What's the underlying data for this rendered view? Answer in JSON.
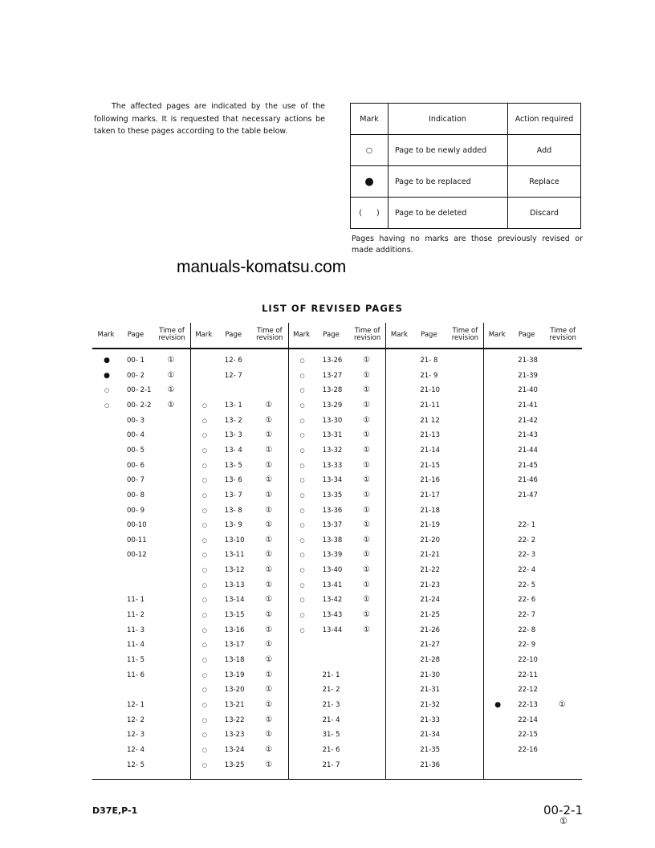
{
  "intro_text": "The affected pages are indicated by the use of the following marks. It is requested that necessary actions be taken to these pages according to the table below.",
  "legend": {
    "headers": [
      "Mark",
      "Indication",
      "Action required"
    ],
    "rows": [
      {
        "mark": "○",
        "indication": "Page to be newly added",
        "action": "Add"
      },
      {
        "mark": "●",
        "indication": "Page to be replaced",
        "action": "Replace"
      },
      {
        "mark": "(      )",
        "indication": "Page to be deleted",
        "action": "Discard"
      }
    ]
  },
  "note": "Pages having no marks are those previously revised or made additions.",
  "watermark": "manuals-komatsu.com",
  "title": "LIST OF REVISED PAGES",
  "revised_table": {
    "headers": {
      "mark": "Mark",
      "page": "Page",
      "time": "Time of revision"
    },
    "mark_symbols": {
      "open": "○",
      "filled": "●"
    },
    "revision_symbol": "①",
    "columns": [
      [
        [
          "filled",
          "00- 1",
          "1"
        ],
        [
          "filled",
          "00- 2",
          "1"
        ],
        [
          "open",
          "00- 2-1",
          "1"
        ],
        [
          "open",
          "00- 2-2",
          "1"
        ],
        [
          "",
          "00- 3",
          ""
        ],
        [
          "",
          "00- 4",
          ""
        ],
        [
          "",
          "00- 5",
          ""
        ],
        [
          "",
          "00- 6",
          ""
        ],
        [
          "",
          "00- 7",
          ""
        ],
        [
          "",
          "00- 8",
          ""
        ],
        [
          "",
          "00- 9",
          ""
        ],
        [
          "",
          "00-10",
          ""
        ],
        [
          "",
          "00-11",
          ""
        ],
        [
          "",
          "00-12",
          ""
        ],
        [
          "",
          "",
          ""
        ],
        [
          "",
          "",
          ""
        ],
        [
          "",
          "11- 1",
          ""
        ],
        [
          "",
          "11- 2",
          ""
        ],
        [
          "",
          "11- 3",
          ""
        ],
        [
          "",
          "11- 4",
          ""
        ],
        [
          "",
          "11- 5",
          ""
        ],
        [
          "",
          "11- 6",
          ""
        ],
        [
          "",
          "",
          ""
        ],
        [
          "",
          "12- 1",
          ""
        ],
        [
          "",
          "12- 2",
          ""
        ],
        [
          "",
          "12- 3",
          ""
        ],
        [
          "",
          "12- 4",
          ""
        ],
        [
          "",
          "12- 5",
          ""
        ]
      ],
      [
        [
          "",
          "12- 6",
          ""
        ],
        [
          "",
          "12- 7",
          ""
        ],
        [
          "",
          "",
          ""
        ],
        [
          "open",
          "13- 1",
          "1"
        ],
        [
          "open",
          "13- 2",
          "1"
        ],
        [
          "open",
          "13- 3",
          "1"
        ],
        [
          "open",
          "13- 4",
          "1"
        ],
        [
          "open",
          "13- 5",
          "1"
        ],
        [
          "open",
          "13- 6",
          "1"
        ],
        [
          "open",
          "13- 7",
          "1"
        ],
        [
          "open",
          "13- 8",
          "1"
        ],
        [
          "open",
          "13- 9",
          "1"
        ],
        [
          "open",
          "13-10",
          "1"
        ],
        [
          "open",
          "13-11",
          "1"
        ],
        [
          "open",
          "13-12",
          "1"
        ],
        [
          "open",
          "13-13",
          "1"
        ],
        [
          "open",
          "13-14",
          "1"
        ],
        [
          "open",
          "13-15",
          "1"
        ],
        [
          "open",
          "13-16",
          "1"
        ],
        [
          "open",
          "13-17",
          "1"
        ],
        [
          "open",
          "13-18",
          "1"
        ],
        [
          "open",
          "13-19",
          "1"
        ],
        [
          "open",
          "13-20",
          "1"
        ],
        [
          "open",
          "13-21",
          "1"
        ],
        [
          "open",
          "13-22",
          "1"
        ],
        [
          "open",
          "13-23",
          "1"
        ],
        [
          "open",
          "13-24",
          "1"
        ],
        [
          "open",
          "13-25",
          "1"
        ]
      ],
      [
        [
          "open",
          "13-26",
          "1"
        ],
        [
          "open",
          "13-27",
          "1"
        ],
        [
          "open",
          "13-28",
          "1"
        ],
        [
          "open",
          "13-29",
          "1"
        ],
        [
          "open",
          "13-30",
          "1"
        ],
        [
          "open",
          "13-31",
          "1"
        ],
        [
          "open",
          "13-32",
          "1"
        ],
        [
          "open",
          "13-33",
          "1"
        ],
        [
          "open",
          "13-34",
          "1"
        ],
        [
          "open",
          "13-35",
          "1"
        ],
        [
          "open",
          "13-36",
          "1"
        ],
        [
          "open",
          "13-37",
          "1"
        ],
        [
          "open",
          "13-38",
          "1"
        ],
        [
          "open",
          "13-39",
          "1"
        ],
        [
          "open",
          "13-40",
          "1"
        ],
        [
          "open",
          "13-41",
          "1"
        ],
        [
          "open",
          "13-42",
          "1"
        ],
        [
          "open",
          "13-43",
          "1"
        ],
        [
          "open",
          "13-44",
          "1"
        ],
        [
          "",
          "",
          ""
        ],
        [
          "",
          "",
          ""
        ],
        [
          "",
          "21- 1",
          ""
        ],
        [
          "",
          "21- 2",
          ""
        ],
        [
          "",
          "21- 3",
          ""
        ],
        [
          "",
          "21- 4",
          ""
        ],
        [
          "",
          "31- 5",
          ""
        ],
        [
          "",
          "21- 6",
          ""
        ],
        [
          "",
          "21- 7",
          ""
        ]
      ],
      [
        [
          "",
          "21- 8",
          ""
        ],
        [
          "",
          "21- 9",
          ""
        ],
        [
          "",
          "21-10",
          ""
        ],
        [
          "",
          "21-11",
          ""
        ],
        [
          "",
          "21 12",
          ""
        ],
        [
          "",
          "21-13",
          ""
        ],
        [
          "",
          "21-14",
          ""
        ],
        [
          "",
          "21-15",
          ""
        ],
        [
          "",
          "21-16",
          ""
        ],
        [
          "",
          "21-17",
          ""
        ],
        [
          "",
          "21-18",
          ""
        ],
        [
          "",
          "21-19",
          ""
        ],
        [
          "",
          "21-20",
          ""
        ],
        [
          "",
          "21-21",
          ""
        ],
        [
          "",
          "21-22",
          ""
        ],
        [
          "",
          "21-23",
          ""
        ],
        [
          "",
          "21-24",
          ""
        ],
        [
          "",
          "21-25",
          ""
        ],
        [
          "",
          "21-26",
          ""
        ],
        [
          "",
          "21-27",
          ""
        ],
        [
          "",
          "21-28",
          ""
        ],
        [
          "",
          "21-30",
          ""
        ],
        [
          "",
          "21-31",
          ""
        ],
        [
          "",
          "21-32",
          ""
        ],
        [
          "",
          "21-33",
          ""
        ],
        [
          "",
          "21-34",
          ""
        ],
        [
          "",
          "21-35",
          ""
        ],
        [
          "",
          "21-36",
          ""
        ]
      ],
      [
        [
          "",
          "21-38",
          ""
        ],
        [
          "",
          "21-39",
          ""
        ],
        [
          "",
          "21-40",
          ""
        ],
        [
          "",
          "21-41",
          ""
        ],
        [
          "",
          "21-42",
          ""
        ],
        [
          "",
          "21-43",
          ""
        ],
        [
          "",
          "21-44",
          ""
        ],
        [
          "",
          "21-45",
          ""
        ],
        [
          "",
          "21-46",
          ""
        ],
        [
          "",
          "21-47",
          ""
        ],
        [
          "",
          "",
          ""
        ],
        [
          "",
          "22- 1",
          ""
        ],
        [
          "",
          "22- 2",
          ""
        ],
        [
          "",
          "22- 3",
          ""
        ],
        [
          "",
          "22- 4",
          ""
        ],
        [
          "",
          "22- 5",
          ""
        ],
        [
          "",
          "22- 6",
          ""
        ],
        [
          "",
          "22- 7",
          ""
        ],
        [
          "",
          "22- 8",
          ""
        ],
        [
          "",
          "22- 9",
          ""
        ],
        [
          "",
          "22-10",
          ""
        ],
        [
          "",
          "22-11",
          ""
        ],
        [
          "",
          "22-12",
          ""
        ],
        [
          "filled",
          "22-13",
          "1"
        ],
        [
          "",
          "22-14",
          ""
        ],
        [
          "",
          "22-15",
          ""
        ],
        [
          "",
          "22-16",
          ""
        ],
        [
          "",
          "",
          ""
        ]
      ]
    ]
  },
  "footer": {
    "model": "D37E,P-1",
    "page_number": "00-2-1",
    "revision": "①"
  }
}
